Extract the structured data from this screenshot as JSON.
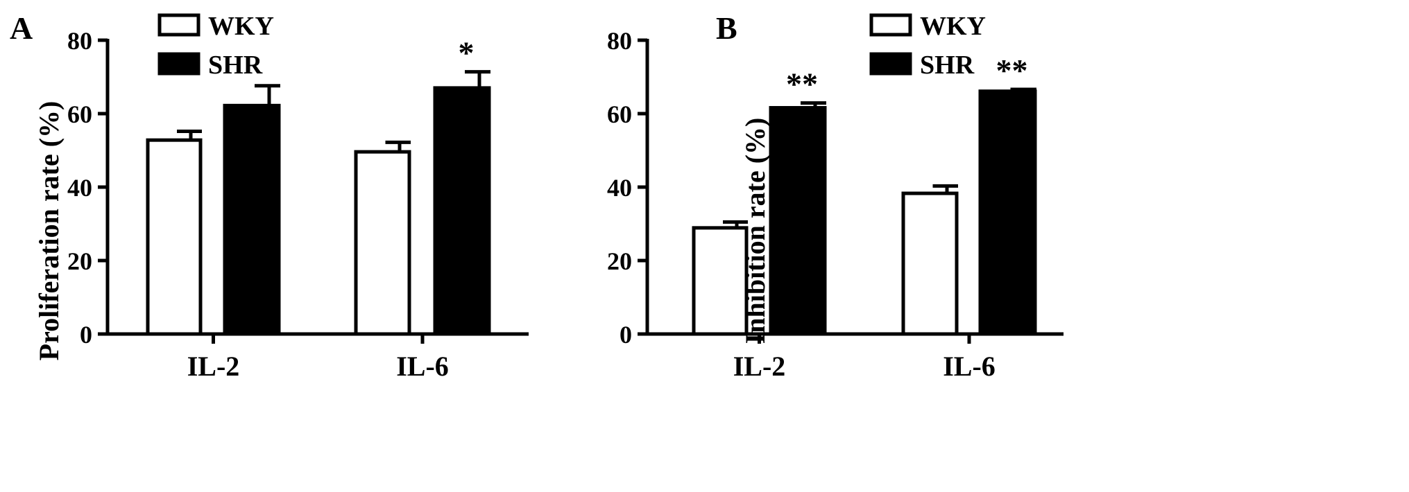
{
  "colors": {
    "wky_fill": "#ffffff",
    "shr_fill": "#000000",
    "stroke": "#000000"
  },
  "chart_data": [
    {
      "panel": "A",
      "type": "bar",
      "ylabel": "Proliferation rate (%)",
      "xlabel": "",
      "ylim": [
        0,
        80
      ],
      "yticks": [
        "0",
        "20",
        "40",
        "60",
        "80"
      ],
      "categories": [
        "IL-2",
        "IL-6"
      ],
      "legend": {
        "placement": "top-left",
        "entries": [
          "WKY",
          "SHR"
        ]
      },
      "series": [
        {
          "name": "WKY",
          "values": [
            52.8,
            49.6
          ],
          "errors": [
            2.4,
            2.6
          ],
          "annotations": [
            "",
            ""
          ]
        },
        {
          "name": "SHR",
          "values": [
            62.2,
            67.0
          ],
          "errors": [
            5.4,
            4.4
          ],
          "annotations": [
            "",
            "*"
          ]
        }
      ]
    },
    {
      "panel": "B",
      "type": "bar",
      "ylabel": "Inhibition rate (%)",
      "xlabel": "",
      "ylim": [
        0,
        80
      ],
      "yticks": [
        "0",
        "20",
        "40",
        "60",
        "80"
      ],
      "categories": [
        "IL-2",
        "IL-6"
      ],
      "legend": {
        "placement": "top-left",
        "entries": [
          "WKY",
          "SHR"
        ]
      },
      "series": [
        {
          "name": "WKY",
          "values": [
            28.9,
            38.3
          ],
          "errors": [
            1.6,
            2.0
          ],
          "annotations": [
            "",
            ""
          ]
        },
        {
          "name": "SHR",
          "values": [
            61.6,
            66.1
          ],
          "errors": [
            1.3,
            0.5
          ],
          "annotations": [
            "**",
            "**"
          ]
        }
      ]
    }
  ]
}
